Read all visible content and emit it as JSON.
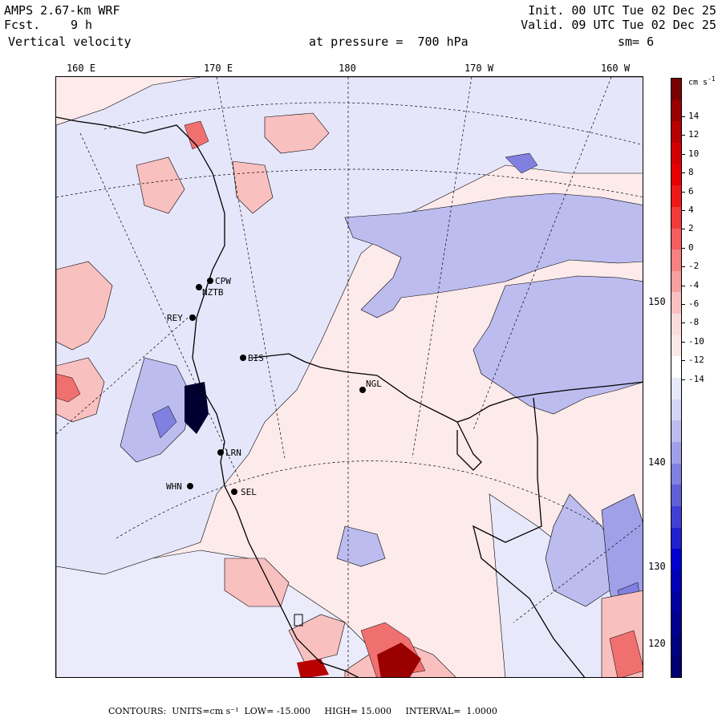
{
  "header": {
    "model": "AMPS 2.67-km WRF",
    "fcst_label": "Fcst.",
    "fcst_value": "9 h",
    "field": "Vertical velocity",
    "init": "Init. 00 UTC Tue 02 Dec 25",
    "valid": "Valid. 09 UTC Tue 02 Dec 25",
    "pressure": "at pressure =  700 hPa",
    "smoothing": "sm= 6"
  },
  "lon_labels": [
    "160 E",
    "170 E",
    "180",
    "170 W",
    "160 W"
  ],
  "lat_labels": [
    "150 W",
    "140 W",
    "130 W",
    "120 W"
  ],
  "stations": [
    {
      "name": "CPW"
    },
    {
      "name": "NZTB"
    },
    {
      "name": "REY"
    },
    {
      "name": "BIS"
    },
    {
      "name": "NGL"
    },
    {
      "name": "LRN"
    },
    {
      "name": "WHN"
    },
    {
      "name": "SEL"
    }
  ],
  "colorbar": {
    "units": "cm s-1",
    "labels": [
      "14",
      "12",
      "10",
      "8",
      "6",
      "4",
      "2",
      "0",
      "-2",
      "-4",
      "-6",
      "-8",
      "-10",
      "-12",
      "-14"
    ],
    "colors_top_to_bottom": [
      "#7a0000",
      "#9a0000",
      "#b80000",
      "#d40000",
      "#e80000",
      "#f01818",
      "#f43a3a",
      "#f65e5e",
      "#f78080",
      "#f7a0a0",
      "#f9c0c0",
      "#fbdcdc",
      "#fde8e8",
      "#ffffff",
      "#e8e8fb",
      "#d4d4f6",
      "#bcbcef",
      "#a0a0e8",
      "#8080e0",
      "#6060d8",
      "#4040d4",
      "#2020d0",
      "#0000d0",
      "#0000b8",
      "#0000a0",
      "#000090",
      "#000080",
      "#000070"
    ]
  },
  "footer": "CONTOURS:  UNITS=cm s⁻¹  LOW= -15.000     HIGH= 15.000     INTERVAL=  1.0000"
}
